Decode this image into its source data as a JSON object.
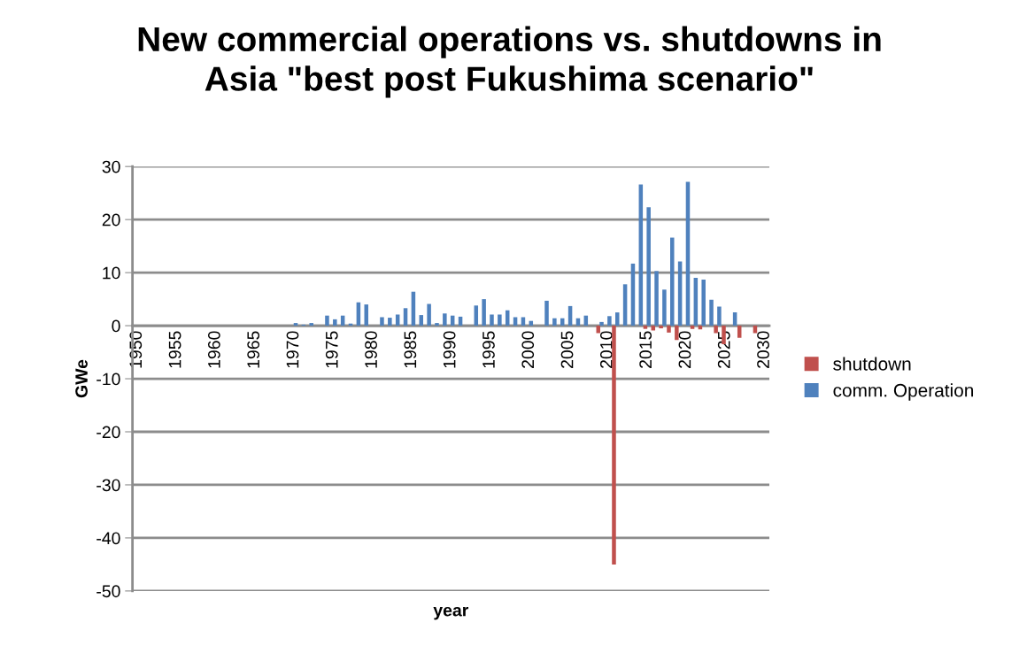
{
  "chart_data": {
    "type": "bar",
    "title": "New commercial operations vs. shutdowns in\nAsia \"best post Fukushima scenario\"",
    "xlabel": "year",
    "ylabel": "GWe",
    "categories": [
      "1950",
      null,
      null,
      null,
      null,
      "1955",
      null,
      null,
      null,
      null,
      "1960",
      null,
      null,
      null,
      null,
      "1965",
      null,
      null,
      null,
      null,
      "1970",
      null,
      null,
      null,
      null,
      "1975",
      null,
      null,
      null,
      null,
      "1980",
      null,
      null,
      null,
      null,
      "1985",
      null,
      null,
      null,
      null,
      "1990",
      null,
      null,
      null,
      null,
      "1995",
      null,
      null,
      null,
      null,
      "2000",
      null,
      null,
      null,
      null,
      "2005",
      null,
      null,
      null,
      null,
      "2010",
      null,
      null,
      null,
      null,
      "2015",
      null,
      null,
      null,
      null,
      "2020",
      null,
      null,
      null,
      null,
      "2025",
      null,
      null,
      null,
      null,
      "2030"
    ],
    "series": [
      {
        "name": "shutdown",
        "color": "#c0504d",
        "values": [
          0,
          0,
          0,
          0,
          0,
          0,
          0,
          0,
          0,
          0,
          0,
          0,
          0,
          0,
          0,
          0,
          0,
          0,
          0,
          0,
          0,
          0,
          0,
          0,
          0,
          0,
          0,
          0,
          0,
          0,
          0,
          0,
          0,
          0,
          0,
          0,
          0,
          0,
          0,
          0,
          0,
          0,
          0,
          0,
          0,
          0,
          0,
          0,
          0,
          0,
          0,
          0,
          0,
          0,
          0,
          0,
          0,
          0,
          0,
          -1.4,
          0,
          -45,
          0,
          0,
          0,
          -0.6,
          -0.9,
          -0.5,
          -1.3,
          -2.7,
          0,
          -0.6,
          -0.7,
          0,
          -1.4,
          -3.5,
          0,
          -2.3,
          0,
          -1.4,
          0
        ]
      },
      {
        "name": "comm. Operation",
        "color": "#4f81bd",
        "values": [
          0,
          0,
          0,
          0,
          0,
          0,
          0,
          0,
          0,
          0,
          0,
          0,
          0,
          0,
          0,
          0,
          0,
          0,
          0,
          0,
          0.5,
          0.2,
          0.5,
          0,
          1.9,
          1.2,
          1.9,
          0.4,
          4.4,
          4.0,
          0,
          1.6,
          1.5,
          2.1,
          3.3,
          6.4,
          2.0,
          4.1,
          0.5,
          2.3,
          1.9,
          1.7,
          0,
          3.8,
          5.0,
          2.1,
          2.1,
          2.9,
          1.6,
          1.6,
          0.9,
          0,
          4.7,
          1.4,
          1.4,
          3.7,
          1.4,
          1.9,
          0,
          0.7,
          1.8,
          2.5,
          7.8,
          11.7,
          26.6,
          22.3,
          10.3,
          6.8,
          16.6,
          12.1,
          27.1,
          9.0,
          8.7,
          4.9,
          3.6,
          0,
          2.5,
          0,
          0,
          0,
          0
        ]
      }
    ],
    "ylim": [
      -50,
      30
    ],
    "yticks": [
      -50,
      -40,
      -30,
      -20,
      -10,
      0,
      10,
      20,
      30
    ],
    "grid": "y",
    "legend": "right"
  }
}
